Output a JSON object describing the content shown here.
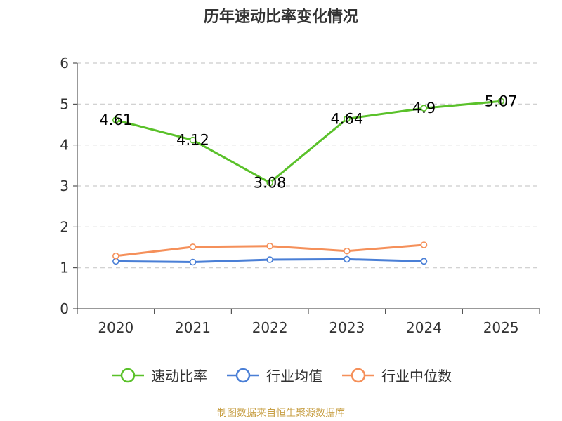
{
  "chart_data": {
    "type": "line",
    "title": "历年速动比率变化情况",
    "categories": [
      "2020",
      "2021",
      "2022",
      "2023",
      "2024",
      "2025"
    ],
    "ylim": [
      0,
      6
    ],
    "yticks": [
      0,
      1,
      2,
      3,
      4,
      5,
      6
    ],
    "grid": true,
    "legend_position": "bottom",
    "series": [
      {
        "name": "速动比率",
        "color": "#5ac12a",
        "values": [
          4.61,
          4.12,
          3.08,
          4.64,
          4.9,
          5.07
        ],
        "labels": [
          "4.61",
          "4.12",
          "3.08",
          "4.64",
          "4.9",
          "5.07"
        ]
      },
      {
        "name": "行业均值",
        "color": "#4a7fd6",
        "values": [
          1.16,
          1.14,
          1.2,
          1.21,
          1.16,
          null
        ]
      },
      {
        "name": "行业中位数",
        "color": "#f5905a",
        "values": [
          1.29,
          1.51,
          1.53,
          1.41,
          1.56,
          null
        ]
      }
    ]
  },
  "source": "制图数据来自恒生聚源数据库"
}
